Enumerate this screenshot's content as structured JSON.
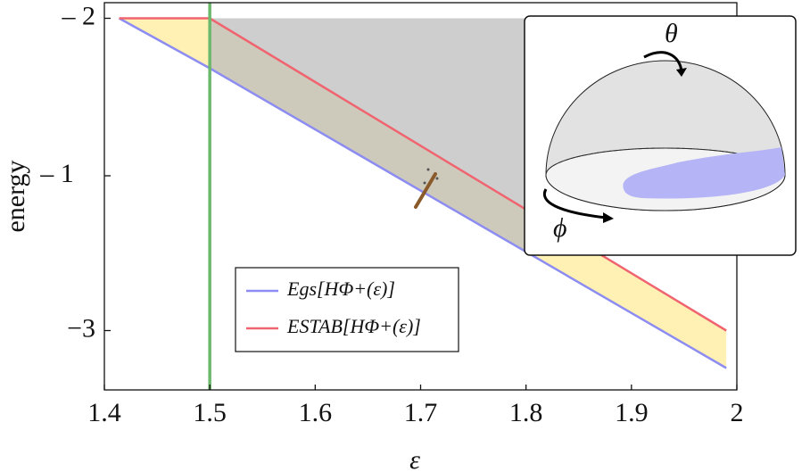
{
  "chart_data": {
    "type": "line",
    "xlabel": "ε",
    "ylabel": "energy",
    "x": [
      1.414,
      1.5,
      1.99
    ],
    "series": [
      {
        "name": "Egs[HΦ+(ε)]",
        "color": "#8c8cf2",
        "values": [
          -2,
          -2.16,
          -3.12
        ]
      },
      {
        "name": "ESTAB[HΦ+(ε)]",
        "color": "#f06470",
        "values": [
          -2,
          -2,
          -3.0
        ]
      }
    ],
    "band_color": "#fff0b4",
    "region": {
      "x": [
        1.5,
        1.8
      ],
      "color": "#bdbdbd"
    },
    "vline": {
      "x": 1.5,
      "color": "#6cb86c"
    },
    "xlim": [
      1.4,
      2.0
    ],
    "xticks": [
      1.4,
      1.5,
      1.6,
      1.7,
      1.8,
      1.9,
      2
    ],
    "ylim": [
      -3.19,
      -1.95
    ],
    "yticks": [
      {
        "value": -2,
        "label": "– 2"
      },
      {
        "value": -3,
        "label": "−3"
      }
    ],
    "annotations": [
      {
        "text": "– 1"
      }
    ],
    "inset": {
      "labels": [
        "θ",
        "ϕ"
      ]
    }
  }
}
